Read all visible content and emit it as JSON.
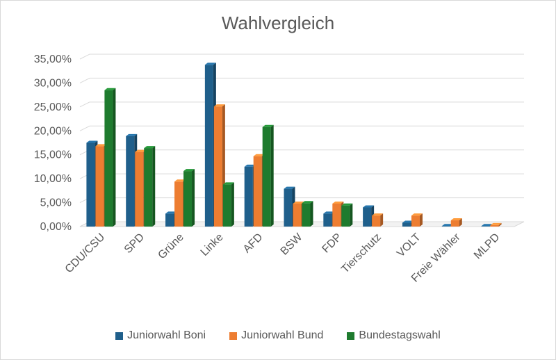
{
  "chart_data": {
    "type": "bar",
    "title": "Wahlvergleich",
    "xlabel": "",
    "ylabel": "",
    "ylim": [
      0,
      35
    ],
    "yticks": [
      "0,00%",
      "5,00%",
      "10,00%",
      "15,00%",
      "20,00%",
      "25,00%",
      "30,00%",
      "35,00%"
    ],
    "grid": true,
    "legend_position": "bottom",
    "categories": [
      "CDU/CSU",
      "SPD",
      "Grüne",
      "Linke",
      "AFD",
      "BSW",
      "FDP",
      "Tierschutz",
      "VOLT",
      "Freie Wähler",
      "MLPD"
    ],
    "series": [
      {
        "name": "Juniorwahl Boni",
        "color": "#1f5f8b",
        "values": [
          17.5,
          18.9,
          2.7,
          33.8,
          12.5,
          7.9,
          2.7,
          4.0,
          0.8,
          0.1,
          0.1
        ]
      },
      {
        "name": "Juniorwahl Bund",
        "color": "#ed7d31",
        "values": [
          16.8,
          15.6,
          9.4,
          25.1,
          14.7,
          4.8,
          4.8,
          2.3,
          2.3,
          1.3,
          0.3
        ]
      },
      {
        "name": "Bundestagswahl",
        "color": "#1e7b2e",
        "values": [
          28.5,
          16.4,
          11.6,
          8.8,
          20.8,
          4.9,
          4.4,
          0.0,
          0.0,
          0.0,
          0.0
        ]
      }
    ]
  }
}
